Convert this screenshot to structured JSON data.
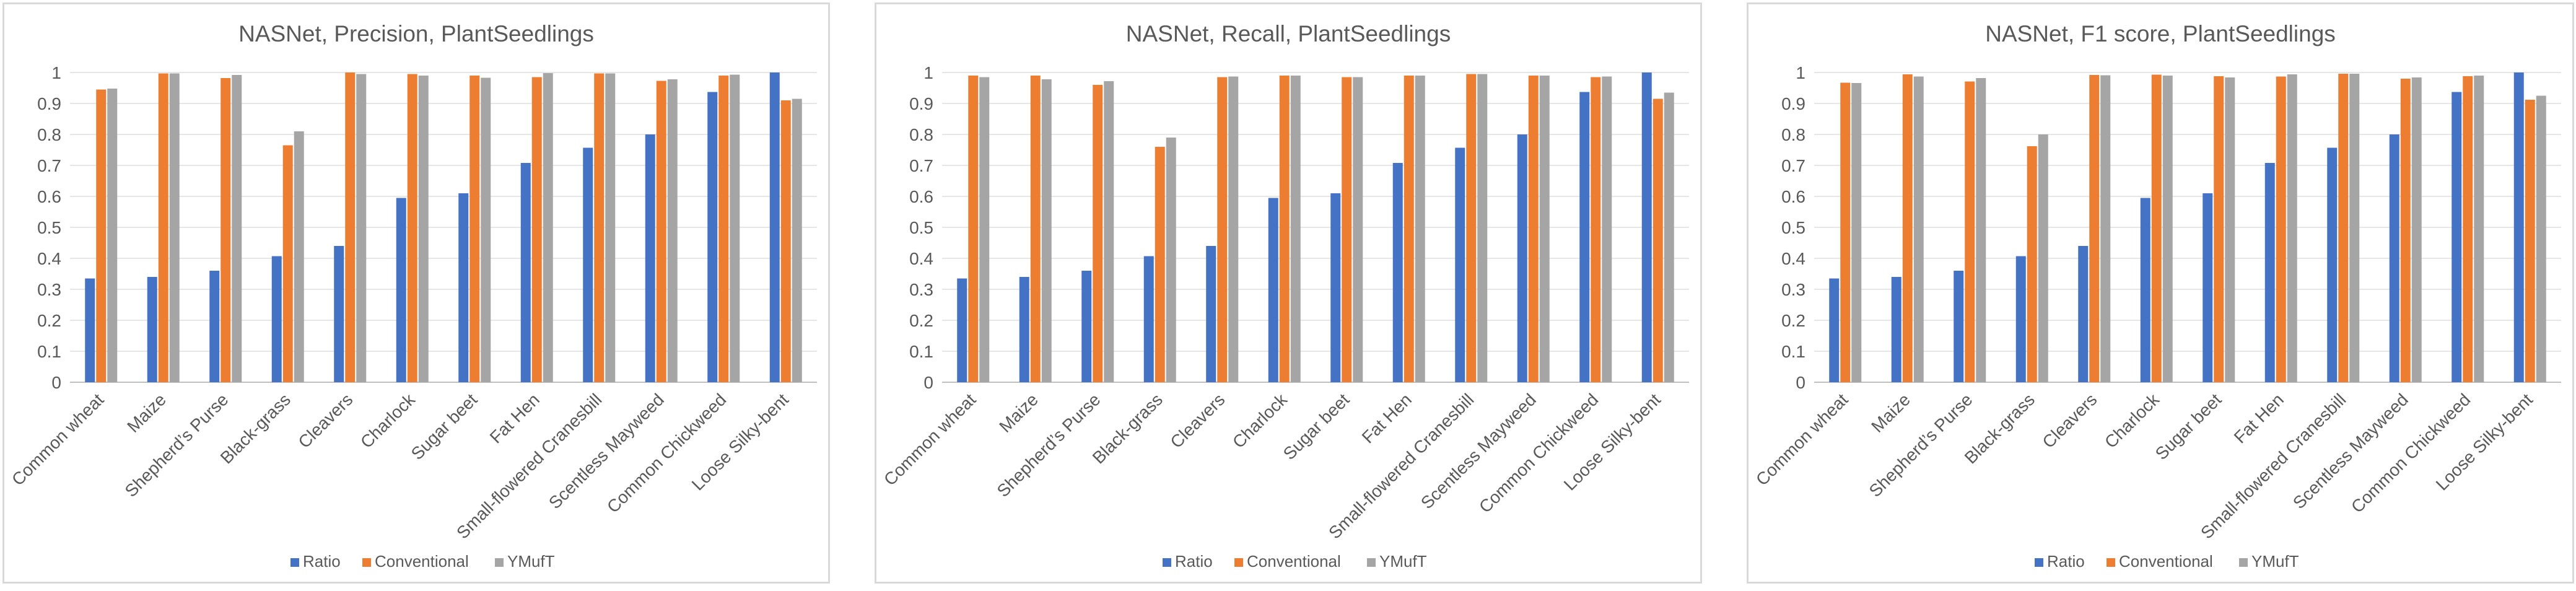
{
  "chart_data": [
    {
      "type": "bar",
      "title": "NASNet, Precision, PlantSeedlings",
      "categories": [
        "Common wheat",
        "Maize",
        "Shepherd’s Purse",
        "Black-grass",
        "Cleavers",
        "Charlock",
        "Sugar beet",
        "Fat Hen",
        "Small-flowered Cranesbill",
        "Scentless Mayweed",
        "Common Chickweed",
        "Loose Silky-bent"
      ],
      "y_ticks": [
        "0",
        "0.1",
        "0.2",
        "0.3",
        "0.4",
        "0.5",
        "0.6",
        "0.7",
        "0.8",
        "0.9",
        "1"
      ],
      "ylim": [
        0,
        1
      ],
      "xlabel": "",
      "ylabel": "",
      "grid": true,
      "legend_position": "bottom",
      "series": [
        {
          "name": "Ratio",
          "color": "#4472c4",
          "values": [
            0.335,
            0.34,
            0.36,
            0.407,
            0.44,
            0.595,
            0.61,
            0.708,
            0.757,
            0.8,
            0.937,
            1.0
          ]
        },
        {
          "name": "Conventional",
          "color": "#ed7d31",
          "values": [
            0.945,
            0.997,
            0.982,
            0.765,
            1.0,
            0.995,
            0.99,
            0.985,
            0.997,
            0.973,
            0.99,
            0.91
          ]
        },
        {
          "name": "YMufT",
          "color": "#a5a5a5",
          "values": [
            0.948,
            0.997,
            0.992,
            0.81,
            0.995,
            0.99,
            0.983,
            0.998,
            0.997,
            0.978,
            0.993,
            0.915
          ]
        }
      ]
    },
    {
      "type": "bar",
      "title": "NASNet, Recall, PlantSeedlings",
      "categories": [
        "Common wheat",
        "Maize",
        "Shepherd’s Purse",
        "Black-grass",
        "Cleavers",
        "Charlock",
        "Sugar beet",
        "Fat Hen",
        "Small-flowered Cranesbill",
        "Scentless Mayweed",
        "Common Chickweed",
        "Loose Silky-bent"
      ],
      "y_ticks": [
        "0",
        "0.1",
        "0.2",
        "0.3",
        "0.4",
        "0.5",
        "0.6",
        "0.7",
        "0.8",
        "0.9",
        "1"
      ],
      "ylim": [
        0,
        1
      ],
      "xlabel": "",
      "ylabel": "",
      "grid": true,
      "legend_position": "bottom",
      "series": [
        {
          "name": "Ratio",
          "color": "#4472c4",
          "values": [
            0.335,
            0.34,
            0.36,
            0.407,
            0.44,
            0.595,
            0.61,
            0.708,
            0.757,
            0.8,
            0.937,
            1.0
          ]
        },
        {
          "name": "Conventional",
          "color": "#ed7d31",
          "values": [
            0.99,
            0.99,
            0.96,
            0.76,
            0.985,
            0.99,
            0.985,
            0.99,
            0.995,
            0.99,
            0.985,
            0.915
          ]
        },
        {
          "name": "YMufT",
          "color": "#a5a5a5",
          "values": [
            0.985,
            0.978,
            0.972,
            0.79,
            0.987,
            0.99,
            0.985,
            0.99,
            0.995,
            0.99,
            0.987,
            0.935
          ]
        }
      ]
    },
    {
      "type": "bar",
      "title": "NASNet, F1 score, PlantSeedlings",
      "categories": [
        "Common wheat",
        "Maize",
        "Shepherd’s Purse",
        "Black-grass",
        "Cleavers",
        "Charlock",
        "Sugar beet",
        "Fat Hen",
        "Small-flowered Cranesbill",
        "Scentless Mayweed",
        "Common Chickweed",
        "Loose Silky-bent"
      ],
      "y_ticks": [
        "0",
        "0.1",
        "0.2",
        "0.3",
        "0.4",
        "0.5",
        "0.6",
        "0.7",
        "0.8",
        "0.9",
        "1"
      ],
      "ylim": [
        0,
        1
      ],
      "xlabel": "",
      "ylabel": "",
      "grid": true,
      "legend_position": "bottom",
      "series": [
        {
          "name": "Ratio",
          "color": "#4472c4",
          "values": [
            0.335,
            0.34,
            0.36,
            0.407,
            0.44,
            0.595,
            0.61,
            0.708,
            0.757,
            0.8,
            0.937,
            1.0
          ]
        },
        {
          "name": "Conventional",
          "color": "#ed7d31",
          "values": [
            0.967,
            0.994,
            0.971,
            0.762,
            0.992,
            0.993,
            0.988,
            0.987,
            0.996,
            0.98,
            0.988,
            0.912
          ]
        },
        {
          "name": "YMufT",
          "color": "#a5a5a5",
          "values": [
            0.966,
            0.987,
            0.982,
            0.8,
            0.991,
            0.99,
            0.984,
            0.994,
            0.996,
            0.984,
            0.99,
            0.925
          ]
        }
      ]
    }
  ]
}
